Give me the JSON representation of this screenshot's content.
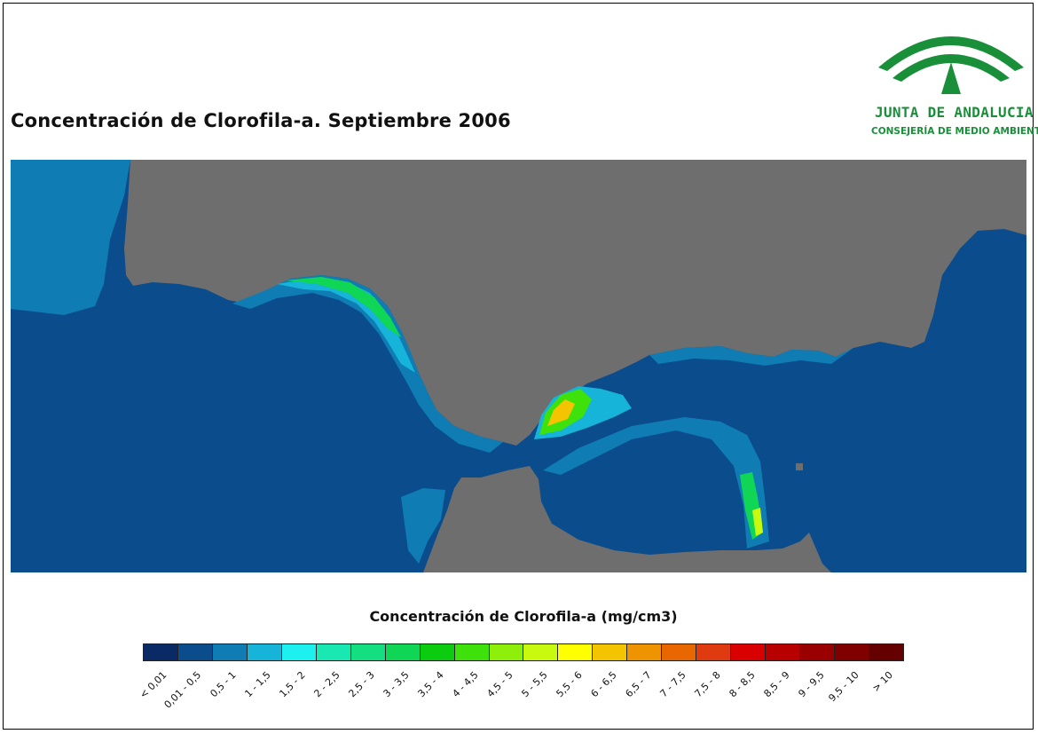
{
  "title": "Concentración de Clorofila-a. Septiembre 2006",
  "logo": {
    "name": "JUNTA DE ANDALUCIA",
    "subtitle": "CONSEJERÍA DE MEDIO AMBIENTE",
    "color": "#1a8f3a"
  },
  "map": {
    "land_color": "#6e6e6e",
    "sea_color": "#0a4c8c",
    "region": "Golfo de Cádiz, Estrecho de Gibraltar y Mar de Alborán"
  },
  "legend": {
    "title": "Concentración de Clorofila-a (mg/cm3)",
    "classes": [
      {
        "label": "< 0,01",
        "color": "#0a2a66"
      },
      {
        "label": "0,01 - 0,5",
        "color": "#0a4c8c"
      },
      {
        "label": "0,5 - 1",
        "color": "#0f7db4"
      },
      {
        "label": "1 - 1,5",
        "color": "#16b4d8"
      },
      {
        "label": "1,5 - 2",
        "color": "#1ef0f0"
      },
      {
        "label": "2 - 2,5",
        "color": "#19e8b2"
      },
      {
        "label": "2,5 - 3",
        "color": "#14de80"
      },
      {
        "label": "3 - 3,5",
        "color": "#10d655"
      },
      {
        "label": "3,5 - 4",
        "color": "#0ccc10"
      },
      {
        "label": "4 - 4,5",
        "color": "#3ee20a"
      },
      {
        "label": "4,5 - 5",
        "color": "#8ef00a"
      },
      {
        "label": "5 - 5,5",
        "color": "#c8fa10"
      },
      {
        "label": "5,5 - 6",
        "color": "#ffff00"
      },
      {
        "label": "6 - 6,5",
        "color": "#f5c400"
      },
      {
        "label": "6,5 - 7",
        "color": "#ee9400"
      },
      {
        "label": "7 - 7,5",
        "color": "#e86600"
      },
      {
        "label": "7,5 - 8",
        "color": "#e03a10"
      },
      {
        "label": "8 - 8,5",
        "color": "#d80000"
      },
      {
        "label": "8,5 - 9",
        "color": "#b80000"
      },
      {
        "label": "9 - 9,5",
        "color": "#9a0000"
      },
      {
        "label": "9,5 - 10",
        "color": "#800000"
      },
      {
        "label": "> 10",
        "color": "#640000"
      }
    ]
  }
}
